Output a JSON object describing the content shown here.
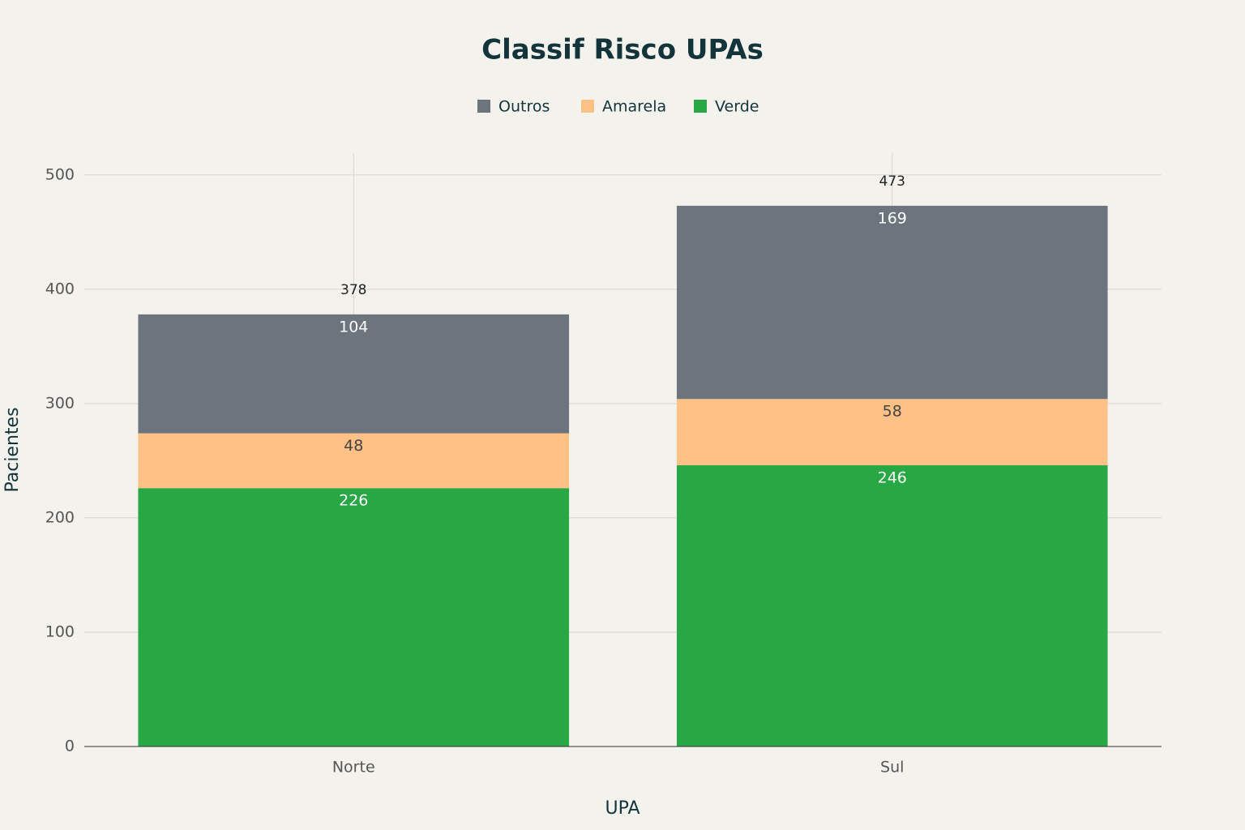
{
  "chart_data": {
    "type": "stacked_bar",
    "title": "Classif Risco UPAs",
    "x_label": "UPA",
    "y_label": "Pacientes",
    "categories": [
      "Norte",
      "Sul"
    ],
    "series": [
      {
        "name": "Verde",
        "color": "#28a745",
        "values": [
          226,
          246
        ]
      },
      {
        "name": "Amarela",
        "color": "#ffc185",
        "values": [
          48,
          58
        ]
      },
      {
        "name": "Outros",
        "color": "#6c757d",
        "values": [
          104,
          169
        ]
      }
    ],
    "totals": [
      378,
      473
    ],
    "ylim": [
      0,
      519
    ],
    "yticks": [
      0,
      100,
      200,
      300,
      400,
      500
    ],
    "grid": true,
    "legend": "top"
  }
}
